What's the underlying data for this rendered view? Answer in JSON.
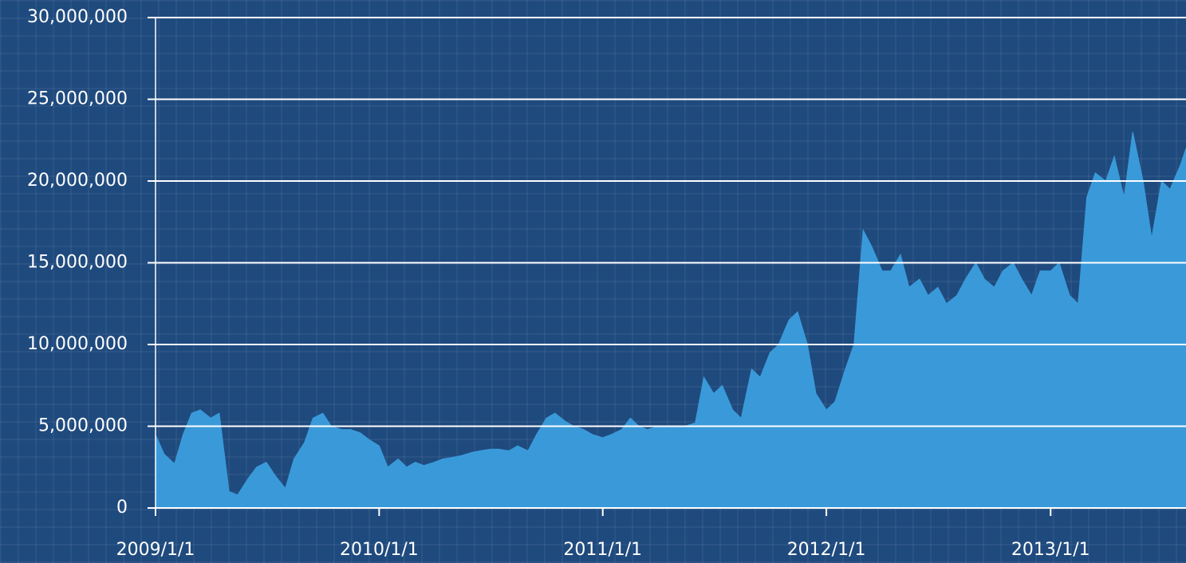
{
  "chart_data": {
    "type": "area",
    "color": "#3a9ad9",
    "grid": true,
    "x": [
      "2009/1/1",
      "2009/1/15",
      "2009/2/1",
      "2009/2/15",
      "2009/3/1",
      "2009/3/15",
      "2009/4/1",
      "2009/4/15",
      "2009/5/1",
      "2009/5/15",
      "2009/6/1",
      "2009/6/15",
      "2009/7/1",
      "2009/7/15",
      "2009/8/1",
      "2009/8/15",
      "2009/9/1",
      "2009/9/15",
      "2009/10/1",
      "2009/10/15",
      "2009/11/1",
      "2009/11/15",
      "2009/12/1",
      "2009/12/15",
      "2010/1/1",
      "2010/1/15",
      "2010/2/1",
      "2010/2/15",
      "2010/3/1",
      "2010/3/15",
      "2010/4/1",
      "2010/4/15",
      "2010/5/1",
      "2010/5/15",
      "2010/6/1",
      "2010/6/15",
      "2010/7/1",
      "2010/7/15",
      "2010/8/1",
      "2010/8/15",
      "2010/9/1",
      "2010/9/15",
      "2010/10/1",
      "2010/10/15",
      "2010/11/1",
      "2010/11/15",
      "2010/12/1",
      "2010/12/15",
      "2011/1/1",
      "2011/1/15",
      "2011/2/1",
      "2011/2/15",
      "2011/3/1",
      "2011/3/15",
      "2011/4/1",
      "2011/4/15",
      "2011/5/1",
      "2011/5/15",
      "2011/6/1",
      "2011/6/15",
      "2011/7/1",
      "2011/7/15",
      "2011/8/1",
      "2011/8/15",
      "2011/9/1",
      "2011/9/15",
      "2011/10/1",
      "2011/10/15",
      "2011/11/1",
      "2011/11/15",
      "2011/12/1",
      "2011/12/15",
      "2012/1/1",
      "2012/1/15",
      "2012/2/1",
      "2012/2/15",
      "2012/3/1",
      "2012/3/15",
      "2012/4/1",
      "2012/4/15",
      "2012/5/1",
      "2012/5/15",
      "2012/6/1",
      "2012/6/15",
      "2012/7/1",
      "2012/7/15",
      "2012/8/1",
      "2012/8/15",
      "2012/9/1",
      "2012/9/15",
      "2012/10/1",
      "2012/10/15",
      "2012/11/1",
      "2012/11/15",
      "2012/12/1",
      "2012/12/15",
      "2013/1/1",
      "2013/1/15",
      "2013/2/1",
      "2013/2/15",
      "2013/3/1",
      "2013/3/15",
      "2013/4/1",
      "2013/4/15",
      "2013/5/1",
      "2013/5/15",
      "2013/6/1",
      "2013/6/15",
      "2013/7/1",
      "2013/7/15",
      "2013/8/1",
      "2013/8/10"
    ],
    "values": [
      4500000,
      3300000,
      2700000,
      4500000,
      5800000,
      6000000,
      5500000,
      5800000,
      1000000,
      800000,
      1800000,
      2500000,
      2800000,
      2000000,
      1200000,
      3000000,
      4000000,
      5500000,
      5800000,
      5000000,
      4800000,
      4800000,
      4600000,
      4200000,
      3800000,
      2500000,
      3000000,
      2500000,
      2800000,
      2600000,
      2800000,
      3000000,
      3100000,
      3200000,
      3400000,
      3500000,
      3600000,
      3600000,
      3500000,
      3800000,
      3500000,
      4500000,
      5500000,
      5800000,
      5300000,
      5000000,
      4800000,
      4500000,
      4300000,
      4500000,
      4800000,
      5500000,
      5000000,
      4800000,
      5000000,
      5000000,
      5000000,
      5000000,
      5200000,
      8000000,
      7000000,
      7500000,
      6000000,
      5500000,
      8500000,
      8000000,
      9500000,
      10000000,
      11500000,
      12000000,
      10000000,
      7000000,
      6000000,
      6500000,
      8500000,
      10000000,
      17000000,
      16000000,
      14500000,
      14500000,
      15500000,
      13500000,
      14000000,
      13000000,
      13500000,
      12500000,
      13000000,
      14000000,
      15000000,
      14000000,
      13500000,
      14500000,
      15000000,
      14000000,
      13000000,
      14500000,
      14500000,
      15000000,
      13000000,
      12500000,
      19000000,
      20500000,
      20000000,
      21500000,
      19000000,
      23000000,
      20000000,
      16500000,
      20000000,
      19500000,
      21000000,
      22000000
    ],
    "xlim": [
      "2009/1/1",
      "2013/8/10"
    ],
    "xticks": [
      "2009/1/1",
      "2010/1/1",
      "2011/1/1",
      "2012/1/1",
      "2013/1/1"
    ],
    "ylim": [
      0,
      30000000
    ],
    "yticks": [
      0,
      {
        "value": 5000000,
        "label": "5,000,000"
      },
      {
        "value": 10000000,
        "label": "10,000,000"
      },
      {
        "value": 15000000,
        "label": "15,000,000"
      },
      {
        "value": 20000000,
        "label": "20,000,000"
      },
      {
        "value": 25000000,
        "label": "25,000,000"
      },
      {
        "value": 30000000,
        "label": "30,000,000"
      }
    ]
  }
}
